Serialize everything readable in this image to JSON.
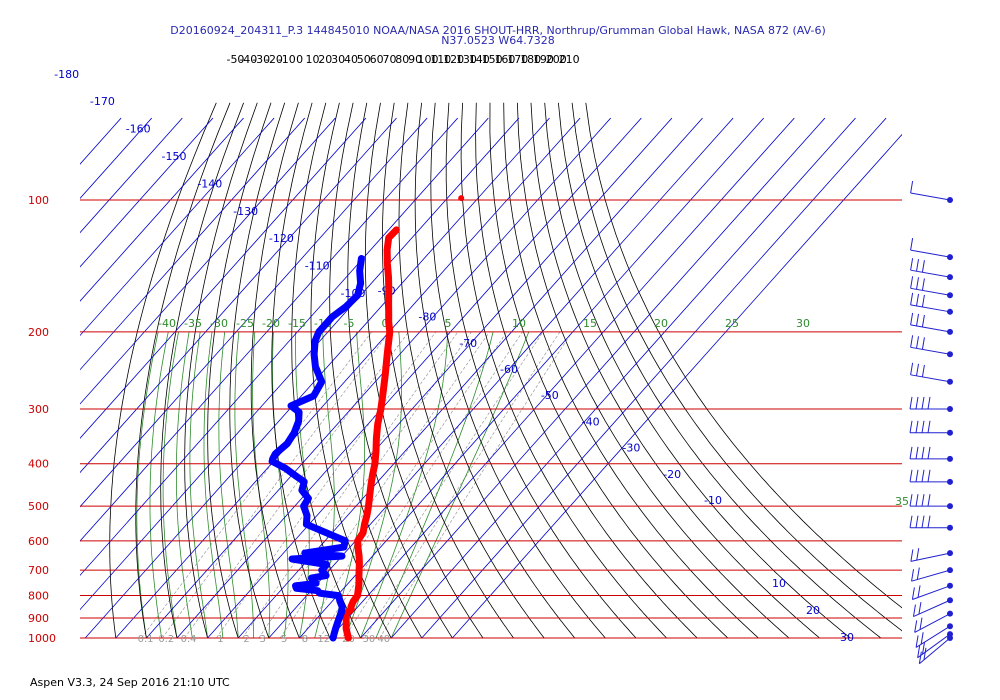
{
  "chart_data": {
    "type": "line",
    "title": "D20160924_204311_P.3 144845010 NOAA/NASA 2016 SHOUT-HRR, Northrup/Grumman Global Hawk, NASA 872 (AV-6)",
    "subtitle": "N37.0523 W64.7328",
    "footer": "Aspen V3.3, 24 Sep 2016  21:10 UTC",
    "y_scale": "log",
    "ylim": [
      1000,
      70
    ],
    "pressure_ticks": [
      100,
      200,
      300,
      400,
      500,
      600,
      700,
      800,
      900,
      1000
    ],
    "temperature_ticks_top": [
      -50,
      -40,
      -30,
      -20,
      -10,
      0,
      10,
      20,
      30,
      40,
      50,
      60,
      70,
      80,
      90,
      100,
      110,
      120,
      130,
      140,
      150,
      160,
      170,
      180,
      190,
      200,
      210
    ],
    "isotherm_labels": [
      -180,
      -170,
      -160,
      -150,
      -140,
      -130,
      -120,
      -110,
      -100,
      -90,
      -80,
      -70,
      -60,
      -50,
      -40,
      -30,
      -20,
      -10,
      10,
      20,
      30
    ],
    "adiabat_labels": [
      -40,
      -35,
      -30,
      -25,
      -20,
      -15,
      -10,
      -5,
      0,
      5,
      10,
      15,
      20,
      25,
      30,
      35
    ],
    "mixing_ratio_labels": [
      "0.1",
      "0.2",
      "0.4",
      "1",
      "2",
      "3",
      "5",
      "8",
      "12",
      "20",
      "30",
      "40"
    ],
    "colors": {
      "temperature": "#ff0000",
      "dewpoint": "#0000ff",
      "isobar": "#cc0000",
      "isotherm": "#0000cc",
      "dry_adiabat": "#000000",
      "moist_adiabat": "#2e8b2e",
      "mixing_ratio": "#999999",
      "barb": "#2020d0"
    },
    "series": [
      {
        "name": "",
        "kind": "temperature",
        "points": [
          [
            1000,
            26.0
          ],
          [
            975,
            24.2
          ],
          [
            950,
            22.4
          ],
          [
            925,
            21.0
          ],
          [
            900,
            19.4
          ],
          [
            880,
            18.2
          ],
          [
            860,
            18.6
          ],
          [
            850,
            17.8
          ],
          [
            825,
            16.9
          ],
          [
            800,
            16.6
          ],
          [
            775,
            15.1
          ],
          [
            750,
            13.5
          ],
          [
            725,
            11.6
          ],
          [
            700,
            9.7
          ],
          [
            675,
            7.8
          ],
          [
            650,
            5.6
          ],
          [
            625,
            3.1
          ],
          [
            600,
            0.7
          ],
          [
            575,
            0.1
          ],
          [
            550,
            -1.9
          ],
          [
            525,
            -3.7
          ],
          [
            500,
            -5.9
          ],
          [
            475,
            -8.4
          ],
          [
            450,
            -11.0
          ],
          [
            425,
            -13.6
          ],
          [
            400,
            -16.2
          ],
          [
            375,
            -19.4
          ],
          [
            350,
            -23.1
          ],
          [
            325,
            -26.8
          ],
          [
            300,
            -30.2
          ],
          [
            275,
            -34.3
          ],
          [
            250,
            -38.9
          ],
          [
            225,
            -44.1
          ],
          [
            200,
            -49.8
          ],
          [
            190,
            -53.0
          ],
          [
            180,
            -56.0
          ],
          [
            170,
            -59.2
          ],
          [
            160,
            -62.5
          ],
          [
            150,
            -66.2
          ],
          [
            140,
            -70.4
          ],
          [
            130,
            -74.6
          ],
          [
            122,
            -77.6
          ],
          [
            117,
            -77.4
          ]
        ]
      },
      {
        "name": "",
        "kind": "dewpoint",
        "points": [
          [
            1000,
            21.0
          ],
          [
            980,
            20.2
          ],
          [
            950,
            19.0
          ],
          [
            925,
            18.1
          ],
          [
            900,
            17.2
          ],
          [
            875,
            16.3
          ],
          [
            850,
            15.0
          ],
          [
            825,
            12.6
          ],
          [
            800,
            10.4
          ],
          [
            790,
            3.5
          ],
          [
            780,
            2.2
          ],
          [
            770,
            -5.5
          ],
          [
            760,
            -6.5
          ],
          [
            750,
            -0.5
          ],
          [
            730,
            -3.5
          ],
          [
            720,
            0.5
          ],
          [
            700,
            -2.5
          ],
          [
            680,
            -2.5
          ],
          [
            660,
            -15.5
          ],
          [
            650,
            0.0
          ],
          [
            640,
            -13.0
          ],
          [
            620,
            -2.0
          ],
          [
            600,
            -3.4
          ],
          [
            575,
            -12.0
          ],
          [
            550,
            -20.9
          ],
          [
            525,
            -23.3
          ],
          [
            500,
            -27.1
          ],
          [
            480,
            -27.8
          ],
          [
            460,
            -32.3
          ],
          [
            440,
            -34.0
          ],
          [
            425,
            -39.0
          ],
          [
            410,
            -44.0
          ],
          [
            395,
            -50.5
          ],
          [
            390,
            -51.0
          ],
          [
            380,
            -51.6
          ],
          [
            360,
            -50.7
          ],
          [
            340,
            -51.6
          ],
          [
            320,
            -53.5
          ],
          [
            305,
            -56.0
          ],
          [
            295,
            -60.5
          ],
          [
            280,
            -56.0
          ],
          [
            260,
            -57.5
          ],
          [
            240,
            -64.0
          ],
          [
            225,
            -68.0
          ],
          [
            210,
            -71.5
          ],
          [
            200,
            -73.0
          ],
          [
            185,
            -73.0
          ],
          [
            175,
            -71.5
          ],
          [
            165,
            -71.0
          ],
          [
            155,
            -73.5
          ],
          [
            145,
            -77.5
          ],
          [
            136,
            -80.5
          ]
        ]
      }
    ],
    "wind_barbs_note": "wind barbs shown at right margin"
  }
}
